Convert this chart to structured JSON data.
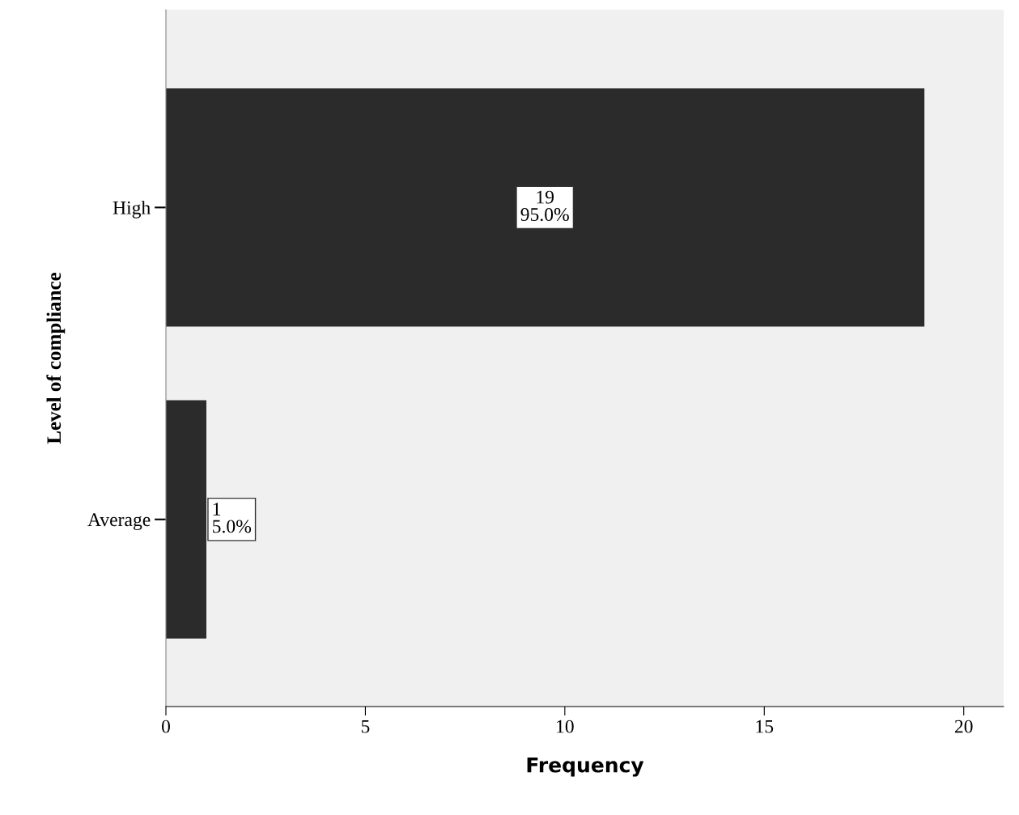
{
  "chart_data": {
    "type": "bar",
    "orientation": "horizontal",
    "xlabel": "Frequency",
    "ylabel": "Level of compliance",
    "categories": [
      "High",
      "Average"
    ],
    "values": [
      19,
      1
    ],
    "value_labels": [
      "19\n95.0%",
      "1\n5.0%"
    ],
    "color": "#2b2b2b",
    "xlim": [
      0,
      21
    ],
    "xticks": [
      0,
      5,
      10,
      15,
      20
    ],
    "grid": false,
    "legend": false
  }
}
